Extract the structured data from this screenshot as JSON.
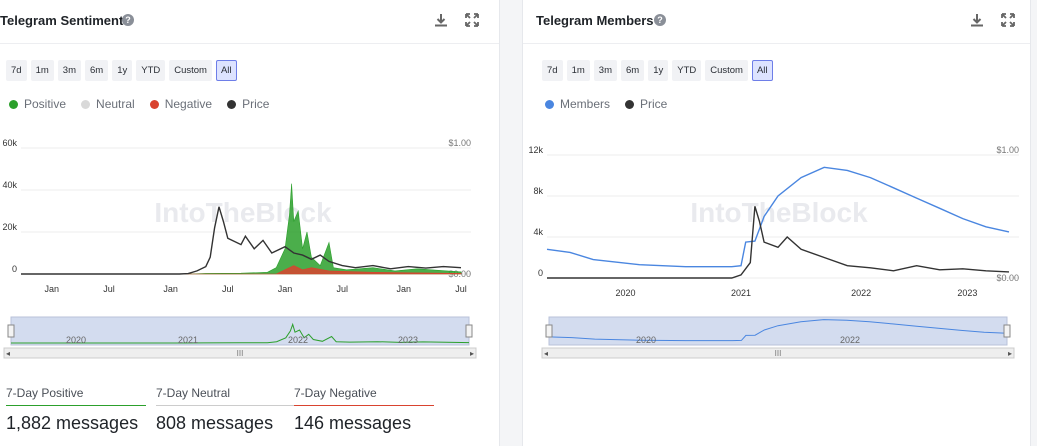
{
  "left": {
    "title": "Telegram Sentiment",
    "ranges": [
      "7d",
      "1m",
      "3m",
      "6m",
      "1y",
      "YTD",
      "Custom",
      "All"
    ],
    "active_range": "All",
    "legend": [
      {
        "label": "Positive",
        "color": "#2ca02c"
      },
      {
        "label": "Neutral",
        "color": "#d9d9d9"
      },
      {
        "label": "Negative",
        "color": "#d9432f"
      },
      {
        "label": "Price",
        "color": "#333333"
      }
    ],
    "watermark": "IntoTheBlock",
    "navigator_labels": [
      "2020",
      "2021",
      "2022",
      "2023"
    ],
    "stats": [
      {
        "label": "7-Day Positive",
        "value": "1,882 messages",
        "color": "#2ca02c"
      },
      {
        "label": "7-Day Neutral",
        "value": "808 messages",
        "color": "#cccccc"
      },
      {
        "label": "7-Day Negative",
        "value": "146 messages",
        "color": "#d9432f"
      }
    ]
  },
  "right": {
    "title": "Telegram Members",
    "ranges": [
      "7d",
      "1m",
      "3m",
      "6m",
      "1y",
      "YTD",
      "Custom",
      "All"
    ],
    "active_range": "All",
    "legend": [
      {
        "label": "Members",
        "color": "#4a86e0"
      },
      {
        "label": "Price",
        "color": "#333333"
      }
    ],
    "watermark": "IntoTheBlock",
    "navigator_labels": [
      "2020",
      "2022"
    ]
  },
  "chart_data": [
    {
      "type": "area",
      "title": "Telegram Sentiment",
      "x_ticks": [
        "Jan",
        "Jul",
        "Jan",
        "Jul",
        "Jan",
        "Jul",
        "Jan",
        "Jul"
      ],
      "y_left": {
        "ticks": [
          "60k",
          "40k",
          "20k",
          "0"
        ],
        "range": [
          0,
          60000
        ]
      },
      "y_right": {
        "ticks": [
          "$1.00",
          "$0.00"
        ],
        "range": [
          0,
          1
        ]
      },
      "series": [
        {
          "name": "Positive",
          "color": "#2ca02c",
          "points": [
            [
              0,
              0
            ],
            [
              0.38,
              0
            ],
            [
              0.42,
              300
            ],
            [
              0.5,
              400
            ],
            [
              0.56,
              800
            ],
            [
              0.58,
              3000
            ],
            [
              0.6,
              12000
            ],
            [
              0.61,
              28000
            ],
            [
              0.615,
              43000
            ],
            [
              0.62,
              25000
            ],
            [
              0.63,
              30000
            ],
            [
              0.64,
              12000
            ],
            [
              0.65,
              20000
            ],
            [
              0.66,
              8000
            ],
            [
              0.68,
              4000
            ],
            [
              0.7,
              15000
            ],
            [
              0.71,
              3000
            ],
            [
              0.74,
              2000
            ],
            [
              0.8,
              3000
            ],
            [
              0.85,
              1500
            ],
            [
              0.9,
              2500
            ],
            [
              1.0,
              1000
            ]
          ]
        },
        {
          "name": "Negative",
          "color": "#d9432f",
          "points": [
            [
              0,
              0
            ],
            [
              0.58,
              0
            ],
            [
              0.6,
              2000
            ],
            [
              0.62,
              4000
            ],
            [
              0.64,
              2000
            ],
            [
              0.66,
              3000
            ],
            [
              0.7,
              1500
            ],
            [
              0.8,
              800
            ],
            [
              1.0,
              300
            ]
          ]
        },
        {
          "name": "Price",
          "color": "#333333",
          "points": [
            [
              0,
              0
            ],
            [
              0.36,
              0
            ],
            [
              0.38,
              200
            ],
            [
              0.4,
              1500
            ],
            [
              0.42,
              3500
            ],
            [
              0.43,
              8000
            ],
            [
              0.44,
              22000
            ],
            [
              0.45,
              32000
            ],
            [
              0.46,
              25000
            ],
            [
              0.47,
              17000
            ],
            [
              0.48,
              16000
            ],
            [
              0.5,
              14000
            ],
            [
              0.51,
              18000
            ],
            [
              0.53,
              12000
            ],
            [
              0.55,
              16000
            ],
            [
              0.57,
              10000
            ],
            [
              0.6,
              13000
            ],
            [
              0.62,
              10000
            ],
            [
              0.64,
              9000
            ],
            [
              0.66,
              7000
            ],
            [
              0.68,
              9000
            ],
            [
              0.7,
              6000
            ],
            [
              0.73,
              4000
            ],
            [
              0.76,
              3000
            ],
            [
              0.8,
              4000
            ],
            [
              0.84,
              2500
            ],
            [
              0.88,
              3500
            ],
            [
              0.92,
              2800
            ],
            [
              0.96,
              3500
            ],
            [
              1.0,
              3000
            ]
          ]
        }
      ]
    },
    {
      "type": "line",
      "title": "Telegram Members",
      "x_ticks": [
        "2020",
        "2021",
        "2022",
        "2023"
      ],
      "y_left": {
        "ticks": [
          "12k",
          "8k",
          "4k",
          "0"
        ],
        "range": [
          0,
          12000
        ]
      },
      "y_right": {
        "ticks": [
          "$1.00",
          "$0.00"
        ],
        "range": [
          0,
          1
        ]
      },
      "series": [
        {
          "name": "Members",
          "color": "#4a86e0",
          "points": [
            [
              0,
              2800
            ],
            [
              0.05,
              2500
            ],
            [
              0.1,
              1800
            ],
            [
              0.2,
              1300
            ],
            [
              0.3,
              1100
            ],
            [
              0.4,
              1100
            ],
            [
              0.42,
              1200
            ],
            [
              0.43,
              3500
            ],
            [
              0.45,
              3600
            ],
            [
              0.47,
              6000
            ],
            [
              0.5,
              8000
            ],
            [
              0.55,
              9800
            ],
            [
              0.6,
              10800
            ],
            [
              0.65,
              10500
            ],
            [
              0.7,
              9800
            ],
            [
              0.75,
              8800
            ],
            [
              0.8,
              7800
            ],
            [
              0.85,
              6800
            ],
            [
              0.9,
              5800
            ],
            [
              0.95,
              5000
            ],
            [
              1.0,
              4500
            ]
          ]
        },
        {
          "name": "Price",
          "color": "#333333",
          "points": [
            [
              0,
              0
            ],
            [
              0.4,
              0
            ],
            [
              0.42,
              300
            ],
            [
              0.44,
              1500
            ],
            [
              0.45,
              7000
            ],
            [
              0.46,
              5500
            ],
            [
              0.47,
              3500
            ],
            [
              0.5,
              3000
            ],
            [
              0.52,
              4000
            ],
            [
              0.55,
              2800
            ],
            [
              0.6,
              2000
            ],
            [
              0.65,
              1200
            ],
            [
              0.7,
              1000
            ],
            [
              0.75,
              700
            ],
            [
              0.8,
              1200
            ],
            [
              0.85,
              800
            ],
            [
              0.9,
              900
            ],
            [
              0.95,
              700
            ],
            [
              1.0,
              600
            ]
          ]
        }
      ]
    }
  ]
}
